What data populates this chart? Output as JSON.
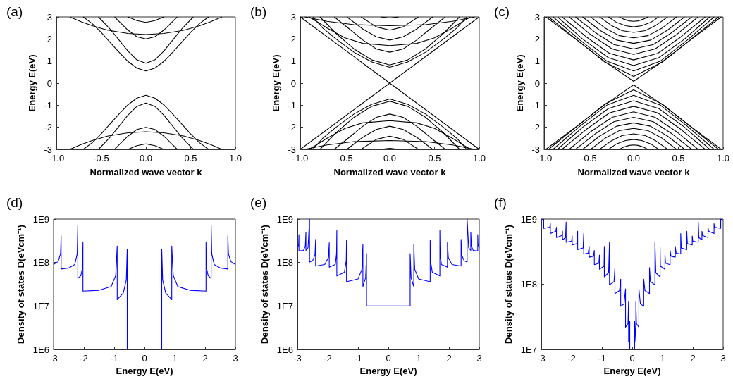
{
  "chart_data": [
    {
      "type": "line",
      "title": "(a)",
      "xlabel": "Normalized wave vector k",
      "ylabel": "Energy E(eV)",
      "marker": "none",
      "xlim": [
        -1,
        1
      ],
      "xticks": [
        {
          "value": -1,
          "label": "-1.0"
        },
        {
          "value": -0.5,
          "label": "-0.5"
        },
        {
          "value": 0,
          "label": "0.0"
        },
        {
          "value": 0.5,
          "label": "0.5"
        },
        {
          "value": 1,
          "label": "1.0"
        }
      ],
      "ylim": [
        -3,
        3
      ],
      "yticks": [
        -3,
        -2,
        -1,
        0,
        1,
        2,
        3
      ],
      "series": [
        {
          "color": "#000000",
          "x": [
            -0.7,
            -0.6,
            -0.5,
            -0.4,
            -0.3,
            -0.2,
            -0.1,
            0,
            0.1,
            0.2,
            0.3,
            0.4,
            0.5,
            0.6,
            0.7
          ],
          "values": [
            3,
            2.7,
            2.3,
            1.85,
            1.4,
            0.98,
            0.68,
            0.55,
            0.68,
            0.98,
            1.4,
            1.85,
            2.3,
            2.7,
            3
          ]
        },
        {
          "color": "#000000",
          "x": [
            -0.53,
            -0.4,
            -0.3,
            -0.2,
            -0.1,
            0,
            0.1,
            0.2,
            0.3,
            0.4,
            0.53
          ],
          "values": [
            3,
            2.45,
            1.95,
            1.45,
            1.05,
            0.9,
            1.05,
            1.45,
            1.95,
            2.45,
            3
          ]
        },
        {
          "color": "#000000",
          "x": [
            -0.35,
            -0.3,
            -0.2,
            -0.1,
            0,
            0.1,
            0.2,
            0.3,
            0.35
          ],
          "values": [
            3,
            2.8,
            2.4,
            2.1,
            2.0,
            2.1,
            2.4,
            2.8,
            3
          ]
        },
        {
          "color": "#000000",
          "x": [
            -0.85,
            -0.72,
            -0.6,
            -0.43,
            -0.2,
            0,
            0.2,
            0.43,
            0.6,
            0.72,
            0.85
          ],
          "values": [
            3,
            2.78,
            2.6,
            2.4,
            2.25,
            2.2,
            2.25,
            2.4,
            2.6,
            2.78,
            3
          ]
        },
        {
          "color": "#000000",
          "x": [
            -0.2,
            -0.1,
            0,
            0.1,
            0.2
          ],
          "values": [
            3,
            2.83,
            2.75,
            2.83,
            3
          ]
        },
        {
          "color": "#000000",
          "x": [
            -0.7,
            -0.6,
            -0.5,
            -0.4,
            -0.3,
            -0.2,
            -0.1,
            0,
            0.1,
            0.2,
            0.3,
            0.4,
            0.5,
            0.6,
            0.7
          ],
          "values": [
            -3,
            -2.7,
            -2.3,
            -1.85,
            -1.4,
            -0.98,
            -0.68,
            -0.55,
            -0.68,
            -0.98,
            -1.4,
            -1.85,
            -2.3,
            -2.7,
            -3
          ]
        },
        {
          "color": "#000000",
          "x": [
            -0.53,
            -0.4,
            -0.3,
            -0.2,
            -0.1,
            0,
            0.1,
            0.2,
            0.3,
            0.4,
            0.53
          ],
          "values": [
            -3,
            -2.45,
            -1.95,
            -1.45,
            -1.05,
            -0.9,
            -1.05,
            -1.45,
            -1.95,
            -2.45,
            -3
          ]
        },
        {
          "color": "#000000",
          "x": [
            -0.35,
            -0.3,
            -0.2,
            -0.1,
            0,
            0.1,
            0.2,
            0.3,
            0.35
          ],
          "values": [
            -3,
            -2.8,
            -2.4,
            -2.1,
            -2.0,
            -2.1,
            -2.4,
            -2.8,
            -3
          ]
        },
        {
          "color": "#000000",
          "x": [
            -0.85,
            -0.72,
            -0.6,
            -0.43,
            -0.2,
            0,
            0.2,
            0.43,
            0.6,
            0.72,
            0.85
          ],
          "values": [
            -3,
            -2.78,
            -2.6,
            -2.4,
            -2.25,
            -2.2,
            -2.25,
            -2.4,
            -2.6,
            -2.78,
            -3
          ]
        },
        {
          "color": "#000000",
          "x": [
            -0.2,
            -0.1,
            0,
            0.1,
            0.2
          ],
          "values": [
            -3,
            -2.83,
            -2.75,
            -2.83,
            -3
          ]
        }
      ]
    },
    {
      "type": "line",
      "title": "(b)",
      "xlabel": "Normalized wave vector k",
      "ylabel": "Energy E(eV)",
      "marker": "none",
      "xlim": [
        -1,
        1
      ],
      "xticks": [
        {
          "value": -1,
          "label": "-1.0"
        },
        {
          "value": -0.5,
          "label": "-0.5"
        },
        {
          "value": 0,
          "label": "0.0"
        },
        {
          "value": 0.5,
          "label": "0.5"
        },
        {
          "value": 1,
          "label": "1.0"
        }
      ],
      "ylim": [
        -3,
        3
      ],
      "yticks": [
        -3,
        -2,
        -1,
        0,
        1,
        2,
        3
      ],
      "series": [
        {
          "color": "#000000",
          "x": [
            -1,
            0,
            1
          ],
          "values": [
            3,
            0,
            3
          ]
        },
        {
          "color": "#000000",
          "x": [
            -0.86,
            -0.75,
            -0.6,
            -0.4,
            -0.2,
            0,
            0.2,
            0.4,
            0.6,
            0.75,
            0.86
          ],
          "values": [
            3,
            2.5,
            2.0,
            1.4,
            0.96,
            0.72,
            0.96,
            1.4,
            2.0,
            2.5,
            3
          ]
        },
        {
          "color": "#000000",
          "x": [
            -0.78,
            -0.6,
            -0.4,
            -0.2,
            0,
            0.2,
            0.4,
            0.6,
            0.78
          ],
          "values": [
            3,
            2.25,
            1.55,
            1.05,
            0.82,
            1.05,
            1.55,
            2.25,
            3
          ]
        },
        {
          "color": "#000000",
          "x": [
            -0.62,
            -0.45,
            -0.3,
            -0.15,
            0,
            0.15,
            0.3,
            0.45,
            0.62
          ],
          "values": [
            3,
            2.45,
            1.95,
            1.55,
            1.4,
            1.55,
            1.95,
            2.45,
            3
          ]
        },
        {
          "color": "#000000",
          "x": [
            -0.9,
            -0.7,
            -0.5,
            -0.3,
            0,
            0.3,
            0.5,
            0.7,
            0.9
          ],
          "values": [
            3,
            2.5,
            2.05,
            1.8,
            1.7,
            1.8,
            2.05,
            2.5,
            3
          ]
        },
        {
          "color": "#000000",
          "x": [
            -0.48,
            -0.3,
            -0.15,
            0,
            0.15,
            0.3,
            0.48
          ],
          "values": [
            3,
            2.45,
            2.1,
            1.95,
            2.1,
            2.45,
            3
          ]
        },
        {
          "color": "#000000",
          "x": [
            -0.32,
            -0.15,
            0,
            0.15,
            0.32
          ],
          "values": [
            3,
            2.55,
            2.4,
            2.55,
            3
          ]
        },
        {
          "color": "#000000",
          "x": [
            -0.95,
            -0.7,
            -0.4,
            0,
            0.4,
            0.7,
            0.95
          ],
          "values": [
            3,
            2.8,
            2.65,
            2.6,
            2.65,
            2.8,
            3
          ]
        },
        {
          "color": "#000000",
          "x": [
            -0.1,
            0,
            0.1
          ],
          "values": [
            3,
            2.95,
            3
          ]
        },
        {
          "color": "#000000",
          "x": [
            -1,
            0,
            1
          ],
          "values": [
            -3,
            0,
            -3
          ]
        },
        {
          "color": "#000000",
          "x": [
            -0.86,
            -0.75,
            -0.6,
            -0.4,
            -0.2,
            0,
            0.2,
            0.4,
            0.6,
            0.75,
            0.86
          ],
          "values": [
            -3,
            -2.5,
            -2.0,
            -1.4,
            -0.96,
            -0.72,
            -0.96,
            -1.4,
            -2.0,
            -2.5,
            -3
          ]
        },
        {
          "color": "#000000",
          "x": [
            -0.78,
            -0.6,
            -0.4,
            -0.2,
            0,
            0.2,
            0.4,
            0.6,
            0.78
          ],
          "values": [
            -3,
            -2.25,
            -1.55,
            -1.05,
            -0.82,
            -1.05,
            -1.55,
            -2.25,
            -3
          ]
        },
        {
          "color": "#000000",
          "x": [
            -0.62,
            -0.45,
            -0.3,
            -0.15,
            0,
            0.15,
            0.3,
            0.45,
            0.62
          ],
          "values": [
            -3,
            -2.45,
            -1.95,
            -1.55,
            -1.4,
            -1.55,
            -1.95,
            -2.45,
            -3
          ]
        },
        {
          "color": "#000000",
          "x": [
            -0.9,
            -0.7,
            -0.5,
            -0.3,
            0,
            0.3,
            0.5,
            0.7,
            0.9
          ],
          "values": [
            -3,
            -2.5,
            -2.05,
            -1.8,
            -1.7,
            -1.8,
            -2.05,
            -2.5,
            -3
          ]
        },
        {
          "color": "#000000",
          "x": [
            -0.48,
            -0.3,
            -0.15,
            0,
            0.15,
            0.3,
            0.48
          ],
          "values": [
            -3,
            -2.45,
            -2.1,
            -1.95,
            -2.1,
            -2.45,
            -3
          ]
        },
        {
          "color": "#000000",
          "x": [
            -0.32,
            -0.15,
            0,
            0.15,
            0.32
          ],
          "values": [
            -3,
            -2.55,
            -2.4,
            -2.55,
            -3
          ]
        },
        {
          "color": "#000000",
          "x": [
            -0.95,
            -0.7,
            -0.4,
            0,
            0.4,
            0.7,
            0.95
          ],
          "values": [
            -3,
            -2.8,
            -2.65,
            -2.6,
            -2.65,
            -2.8,
            -3
          ]
        },
        {
          "color": "#000000",
          "x": [
            -0.1,
            0,
            0.1
          ],
          "values": [
            -3,
            -2.95,
            -3
          ]
        }
      ]
    },
    {
      "type": "line",
      "title": "(c)",
      "xlabel": "Normalized wave vector k",
      "ylabel": "Energy E(eV)",
      "marker": "none",
      "xlim": [
        -1,
        1
      ],
      "xticks": [
        {
          "value": -1,
          "label": "-1.0"
        },
        {
          "value": -0.5,
          "label": "-0.5"
        },
        {
          "value": 0,
          "label": "0.0"
        },
        {
          "value": 0.5,
          "label": "0.5"
        },
        {
          "value": 1,
          "label": "1.0"
        }
      ],
      "ylim": [
        -3,
        3
      ],
      "yticks": [
        -3,
        -2,
        -1,
        0,
        1,
        2,
        3
      ],
      "series": [
        {
          "color": "#000000",
          "x": [
            -0.98,
            -0.65,
            -0.33,
            0,
            0.33,
            0.65,
            0.98
          ],
          "values": [
            3,
            2.0,
            1.0,
            0.08,
            1.0,
            2.0,
            3
          ]
        },
        {
          "color": "#000000",
          "x": [
            -0.95,
            -0.63,
            -0.32,
            0,
            0.32,
            0.63,
            0.95
          ],
          "values": [
            3,
            1.95,
            0.95,
            0.3,
            0.95,
            1.95,
            3
          ]
        },
        {
          "color": "#000000",
          "x": [
            -0.9,
            -0.6,
            -0.3,
            0,
            0.3,
            0.6,
            0.9
          ],
          "values": [
            3,
            1.95,
            1.0,
            0.55,
            1.0,
            1.95,
            3
          ]
        },
        {
          "color": "#000000",
          "x": [
            -0.85,
            -0.57,
            -0.28,
            0,
            0.28,
            0.57,
            0.85
          ],
          "values": [
            3,
            2.0,
            1.15,
            0.8,
            1.15,
            2.0,
            3
          ]
        },
        {
          "color": "#000000",
          "x": [
            -0.8,
            -0.53,
            -0.27,
            0,
            0.27,
            0.53,
            0.8
          ],
          "values": [
            3,
            2.1,
            1.35,
            1.05,
            1.35,
            2.1,
            3
          ]
        },
        {
          "color": "#000000",
          "x": [
            -0.72,
            -0.48,
            -0.24,
            0,
            0.24,
            0.48,
            0.72
          ],
          "values": [
            3,
            2.2,
            1.55,
            1.3,
            1.55,
            2.2,
            3
          ]
        },
        {
          "color": "#000000",
          "x": [
            -0.65,
            -0.43,
            -0.22,
            0,
            0.22,
            0.43,
            0.65
          ],
          "values": [
            3,
            2.3,
            1.75,
            1.55,
            1.75,
            2.3,
            3
          ]
        },
        {
          "color": "#000000",
          "x": [
            -0.57,
            -0.38,
            -0.19,
            0,
            0.19,
            0.38,
            0.57
          ],
          "values": [
            3,
            2.4,
            1.95,
            1.8,
            1.95,
            2.4,
            3
          ]
        },
        {
          "color": "#000000",
          "x": [
            -0.48,
            -0.32,
            -0.16,
            0,
            0.16,
            0.32,
            0.48
          ],
          "values": [
            3,
            2.5,
            2.15,
            2.05,
            2.15,
            2.5,
            3
          ]
        },
        {
          "color": "#000000",
          "x": [
            -0.38,
            -0.25,
            -0.13,
            0,
            0.13,
            0.25,
            0.38
          ],
          "values": [
            3,
            2.62,
            2.38,
            2.3,
            2.38,
            2.62,
            3
          ]
        },
        {
          "color": "#000000",
          "x": [
            -0.28,
            -0.19,
            -0.09,
            0,
            0.09,
            0.19,
            0.28
          ],
          "values": [
            3,
            2.75,
            2.6,
            2.55,
            2.6,
            2.75,
            3
          ]
        },
        {
          "color": "#000000",
          "x": [
            -0.16,
            -0.11,
            -0.05,
            0,
            0.05,
            0.11,
            0.16
          ],
          "values": [
            3,
            2.9,
            2.82,
            2.8,
            2.82,
            2.9,
            3
          ]
        },
        {
          "color": "#000000",
          "x": [
            -0.98,
            -0.65,
            -0.33,
            0,
            0.33,
            0.65,
            0.98
          ],
          "values": [
            -3,
            -2.0,
            -1.0,
            -0.08,
            -1.0,
            -2.0,
            -3
          ]
        },
        {
          "color": "#000000",
          "x": [
            -0.95,
            -0.63,
            -0.32,
            0,
            0.32,
            0.63,
            0.95
          ],
          "values": [
            -3,
            -1.95,
            -0.95,
            -0.3,
            -0.95,
            -1.95,
            -3
          ]
        },
        {
          "color": "#000000",
          "x": [
            -0.9,
            -0.6,
            -0.3,
            0,
            0.3,
            0.6,
            0.9
          ],
          "values": [
            -3,
            -1.95,
            -1.0,
            -0.55,
            -1.0,
            -1.95,
            -3
          ]
        },
        {
          "color": "#000000",
          "x": [
            -0.85,
            -0.57,
            -0.28,
            0,
            0.28,
            0.57,
            0.85
          ],
          "values": [
            -3,
            -2.0,
            -1.15,
            -0.8,
            -1.15,
            -2.0,
            -3
          ]
        },
        {
          "color": "#000000",
          "x": [
            -0.8,
            -0.53,
            -0.27,
            0,
            0.27,
            0.53,
            0.8
          ],
          "values": [
            -3,
            -2.1,
            -1.35,
            -1.05,
            -1.35,
            -2.1,
            -3
          ]
        },
        {
          "color": "#000000",
          "x": [
            -0.72,
            -0.48,
            -0.24,
            0,
            0.24,
            0.48,
            0.72
          ],
          "values": [
            -3,
            -2.2,
            -1.55,
            -1.3,
            -1.55,
            -2.2,
            -3
          ]
        },
        {
          "color": "#000000",
          "x": [
            -0.65,
            -0.43,
            -0.22,
            0,
            0.22,
            0.43,
            0.65
          ],
          "values": [
            -3,
            -2.3,
            -1.75,
            -1.55,
            -1.75,
            -2.3,
            -3
          ]
        },
        {
          "color": "#000000",
          "x": [
            -0.57,
            -0.38,
            -0.19,
            0,
            0.19,
            0.38,
            0.57
          ],
          "values": [
            -3,
            -2.4,
            -1.95,
            -1.8,
            -1.95,
            -2.4,
            -3
          ]
        },
        {
          "color": "#000000",
          "x": [
            -0.48,
            -0.32,
            -0.16,
            0,
            0.16,
            0.32,
            0.48
          ],
          "values": [
            -3,
            -2.5,
            -2.15,
            -2.05,
            -2.15,
            -2.5,
            -3
          ]
        },
        {
          "color": "#000000",
          "x": [
            -0.38,
            -0.25,
            -0.13,
            0,
            0.13,
            0.25,
            0.38
          ],
          "values": [
            -3,
            -2.62,
            -2.38,
            -2.3,
            -2.38,
            -2.62,
            -3
          ]
        },
        {
          "color": "#000000",
          "x": [
            -0.28,
            -0.19,
            -0.09,
            0,
            0.09,
            0.19,
            0.28
          ],
          "values": [
            -3,
            -2.75,
            -2.6,
            -2.55,
            -2.6,
            -2.75,
            -3
          ]
        },
        {
          "color": "#000000",
          "x": [
            -0.16,
            -0.11,
            -0.05,
            0,
            0.05,
            0.11,
            0.16
          ],
          "values": [
            -3,
            -2.9,
            -2.82,
            -2.8,
            -2.82,
            -2.9,
            -3
          ]
        }
      ]
    },
    {
      "type": "line",
      "title": "(d)",
      "xlabel": "Energy E(eV)",
      "ylabel": "Density of states D(eVcm⁻¹)",
      "marker": "none",
      "log": true,
      "xlim": [
        -3,
        3
      ],
      "xticks": [
        -3,
        -2,
        -1,
        0,
        1,
        2,
        3
      ],
      "ylim": [
        1000000.0,
        1000000000.0
      ],
      "yticks": [
        {
          "value": 1000000.0,
          "label": "1E6"
        },
        {
          "value": 10000000.0,
          "label": "1E7"
        },
        {
          "value": 100000000.0,
          "label": "1E8"
        },
        {
          "value": 1000000000.0,
          "label": "1E9"
        }
      ],
      "series": [
        {
          "color": "#0000ff",
          "x": [
            -3,
            -2.85,
            -2.77,
            -2.75,
            -2.75,
            -2.5,
            -2.3,
            -2.22,
            -2.2,
            -2.2,
            -2.1,
            -2.04,
            -2.03,
            -2.03,
            -1.5,
            -1.1,
            -0.95,
            -0.9,
            -0.9,
            -0.7,
            -0.6,
            -0.57,
            -0.57,
            0,
            0.57,
            0.57,
            0.6,
            0.7,
            0.9,
            0.9,
            0.95,
            1.1,
            1.5,
            2.03,
            2.03,
            2.04,
            2.1,
            2.2,
            2.2,
            2.22,
            2.3,
            2.5,
            2.75,
            2.75,
            2.77,
            2.85,
            3
          ],
          "values": [
            90000000.0,
            105000000.0,
            160000000.0,
            410000000.0,
            71000000.0,
            75000000.0,
            90000000.0,
            160000000.0,
            730000000.0,
            43000000.0,
            50000000.0,
            80000000.0,
            300000000.0,
            22000000.0,
            23000000.0,
            28000000.0,
            50000000.0,
            240000000.0,
            14000000.0,
            20000000.0,
            40000000.0,
            200000000.0,
            1000000.0,
            null,
            1000000.0,
            200000000.0,
            40000000.0,
            20000000.0,
            14000000.0,
            240000000.0,
            50000000.0,
            28000000.0,
            23000000.0,
            22000000.0,
            300000000.0,
            80000000.0,
            50000000.0,
            43000000.0,
            730000000.0,
            160000000.0,
            90000000.0,
            75000000.0,
            71000000.0,
            410000000.0,
            160000000.0,
            105000000.0,
            90000000.0
          ]
        }
      ]
    },
    {
      "type": "line",
      "title": "(e)",
      "xlabel": "Energy E(eV)",
      "ylabel": "Density of states D(eVcm⁻¹)",
      "marker": "none",
      "log": true,
      "xlim": [
        -3,
        3
      ],
      "xticks": [
        -3,
        -2,
        -1,
        0,
        1,
        2,
        3
      ],
      "ylim": [
        1000000.0,
        1000000000.0
      ],
      "yticks": [
        {
          "value": 1000000.0,
          "label": "1E6"
        },
        {
          "value": 10000000.0,
          "label": "1E7"
        },
        {
          "value": 100000000.0,
          "label": "1E8"
        },
        {
          "value": 1000000000.0,
          "label": "1E9"
        }
      ],
      "series": [
        {
          "color": "#0000ff",
          "x": [
            -3,
            -2.96,
            -2.95,
            -2.95,
            -2.8,
            -2.74,
            -2.72,
            -2.72,
            -2.65,
            -2.6,
            -2.6,
            -2.5,
            -2.42,
            -2.4,
            -2.4,
            -2.1,
            -1.98,
            -1.95,
            -1.95,
            -1.75,
            -1.71,
            -1.7,
            -1.7,
            -1.45,
            -1.39,
            -1.38,
            -1.38,
            -1,
            -0.87,
            -0.84,
            -0.84,
            -0.75,
            -0.72,
            -0.72,
            0.72,
            0.72,
            0.75,
            0.84,
            0.84,
            0.87,
            1,
            1.38,
            1.38,
            1.39,
            1.45,
            1.7,
            1.7,
            1.71,
            1.75,
            1.95,
            1.95,
            1.98,
            2.1,
            2.4,
            2.4,
            2.42,
            2.5,
            2.6,
            2.6,
            2.65,
            2.72,
            2.72,
            2.74,
            2.8,
            2.95,
            2.95,
            2.96,
            3
          ],
          "values": [
            220000000.0,
            260000000.0,
            440000000.0,
            185000000.0,
            190000000.0,
            240000000.0,
            500000000.0,
            190000000.0,
            220000000.0,
            1000000000.0,
            103000000.0,
            110000000.0,
            150000000.0,
            340000000.0,
            83000000.0,
            90000000.0,
            130000000.0,
            285000000.0,
            78000000.0,
            90000000.0,
            160000000.0,
            550000000.0,
            49000000.0,
            60000000.0,
            110000000.0,
            330000000.0,
            36000000.0,
            42000000.0,
            70000000.0,
            260000000.0,
            28000000.0,
            45000000.0,
            160000000.0,
            10000000.0,
            10000000.0,
            160000000.0,
            45000000.0,
            28000000.0,
            260000000.0,
            70000000.0,
            42000000.0,
            36000000.0,
            330000000.0,
            110000000.0,
            60000000.0,
            49000000.0,
            550000000.0,
            160000000.0,
            90000000.0,
            78000000.0,
            285000000.0,
            130000000.0,
            90000000.0,
            83000000.0,
            340000000.0,
            150000000.0,
            110000000.0,
            103000000.0,
            1000000000.0,
            220000000.0,
            190000000.0,
            500000000.0,
            240000000.0,
            190000000.0,
            185000000.0,
            440000000.0,
            260000000.0,
            220000000.0
          ]
        }
      ]
    },
    {
      "type": "line",
      "title": "(f)",
      "xlabel": "Energy E(eV)",
      "ylabel": "Density of states D(eVcm⁻¹)",
      "marker": "none",
      "log": true,
      "xlim": [
        -3,
        3
      ],
      "xticks": [
        -3,
        -2,
        -1,
        0,
        1,
        2,
        3
      ],
      "ylim": [
        10000000.0,
        1000000000.0
      ],
      "yticks": [
        {
          "value": 10000000.0,
          "label": "1E7"
        },
        {
          "value": 100000000.0,
          "label": "1E8"
        },
        {
          "value": 1000000000.0,
          "label": "1E9"
        }
      ],
      "series": [
        {
          "color": "#0000ff",
          "x": [
            -3,
            -2.92,
            -2.92,
            -2.72,
            -2.7,
            -2.7,
            -2.52,
            -2.5,
            -2.5,
            -2.32,
            -2.3,
            -2.3,
            -2.2,
            -2.18,
            -2.18,
            -2,
            -1.98,
            -1.98,
            -1.82,
            -1.8,
            -1.8,
            -1.62,
            -1.6,
            -1.6,
            -1.45,
            -1.42,
            -1.42,
            -1.28,
            -1.25,
            -1.25,
            -1.1,
            -1.08,
            -1.08,
            -0.93,
            -0.92,
            -0.92,
            -0.78,
            -0.75,
            -0.75,
            -0.6,
            -0.57,
            -0.57,
            -0.42,
            -0.38,
            -0.38,
            -0.27,
            -0.22,
            -0.22,
            -0.14,
            -0.12,
            -0.12,
            -0.08,
            -0.08,
            0,
            0.08,
            0.08,
            0.12,
            0.12,
            0.14,
            0.22,
            0.22,
            0.27,
            0.38,
            0.38,
            0.42,
            0.57,
            0.57,
            0.6,
            0.75,
            0.75,
            0.78,
            0.92,
            0.92,
            0.93,
            1.08,
            1.08,
            1.1,
            1.25,
            1.25,
            1.28,
            1.42,
            1.42,
            1.45,
            1.6,
            1.6,
            1.62,
            1.8,
            1.8,
            1.82,
            1.98,
            1.98,
            2,
            2.18,
            2.18,
            2.2,
            2.3,
            2.3,
            2.32,
            2.5,
            2.5,
            2.52,
            2.7,
            2.7,
            2.72,
            2.92,
            2.92,
            3
          ],
          "values": [
            950000000.0,
            1000000000.0,
            720000000.0,
            750000000.0,
            850000000.0,
            600000000.0,
            650000000.0,
            750000000.0,
            520000000.0,
            560000000.0,
            650000000.0,
            480000000.0,
            520000000.0,
            900000000.0,
            440000000.0,
            460000000.0,
            550000000.0,
            400000000.0,
            420000000.0,
            650000000.0,
            340000000.0,
            360000000.0,
            600000000.0,
            290000000.0,
            300000000.0,
            380000000.0,
            260000000.0,
            270000000.0,
            330000000.0,
            200000000.0,
            210000000.0,
            280000000.0,
            170000000.0,
            190000000.0,
            380000000.0,
            130000000.0,
            150000000.0,
            440000000.0,
            98000000.0,
            110000000.0,
            180000000.0,
            72000000.0,
            80000000.0,
            120000000.0,
            46000000.0,
            50000000.0,
            85000000.0,
            22000000.0,
            25000000.0,
            55000000.0,
            13000000.0,
            27000000.0,
            10000000.0,
            null,
            10000000.0,
            27000000.0,
            13000000.0,
            55000000.0,
            25000000.0,
            22000000.0,
            85000000.0,
            50000000.0,
            46000000.0,
            120000000.0,
            80000000.0,
            72000000.0,
            180000000.0,
            110000000.0,
            98000000.0,
            440000000.0,
            150000000.0,
            130000000.0,
            380000000.0,
            190000000.0,
            170000000.0,
            280000000.0,
            210000000.0,
            200000000.0,
            330000000.0,
            270000000.0,
            260000000.0,
            380000000.0,
            300000000.0,
            290000000.0,
            600000000.0,
            360000000.0,
            340000000.0,
            650000000.0,
            420000000.0,
            400000000.0,
            550000000.0,
            460000000.0,
            440000000.0,
            900000000.0,
            520000000.0,
            480000000.0,
            650000000.0,
            560000000.0,
            520000000.0,
            750000000.0,
            650000000.0,
            600000000.0,
            850000000.0,
            750000000.0,
            720000000.0,
            1000000000.0,
            950000000.0
          ]
        }
      ]
    }
  ]
}
